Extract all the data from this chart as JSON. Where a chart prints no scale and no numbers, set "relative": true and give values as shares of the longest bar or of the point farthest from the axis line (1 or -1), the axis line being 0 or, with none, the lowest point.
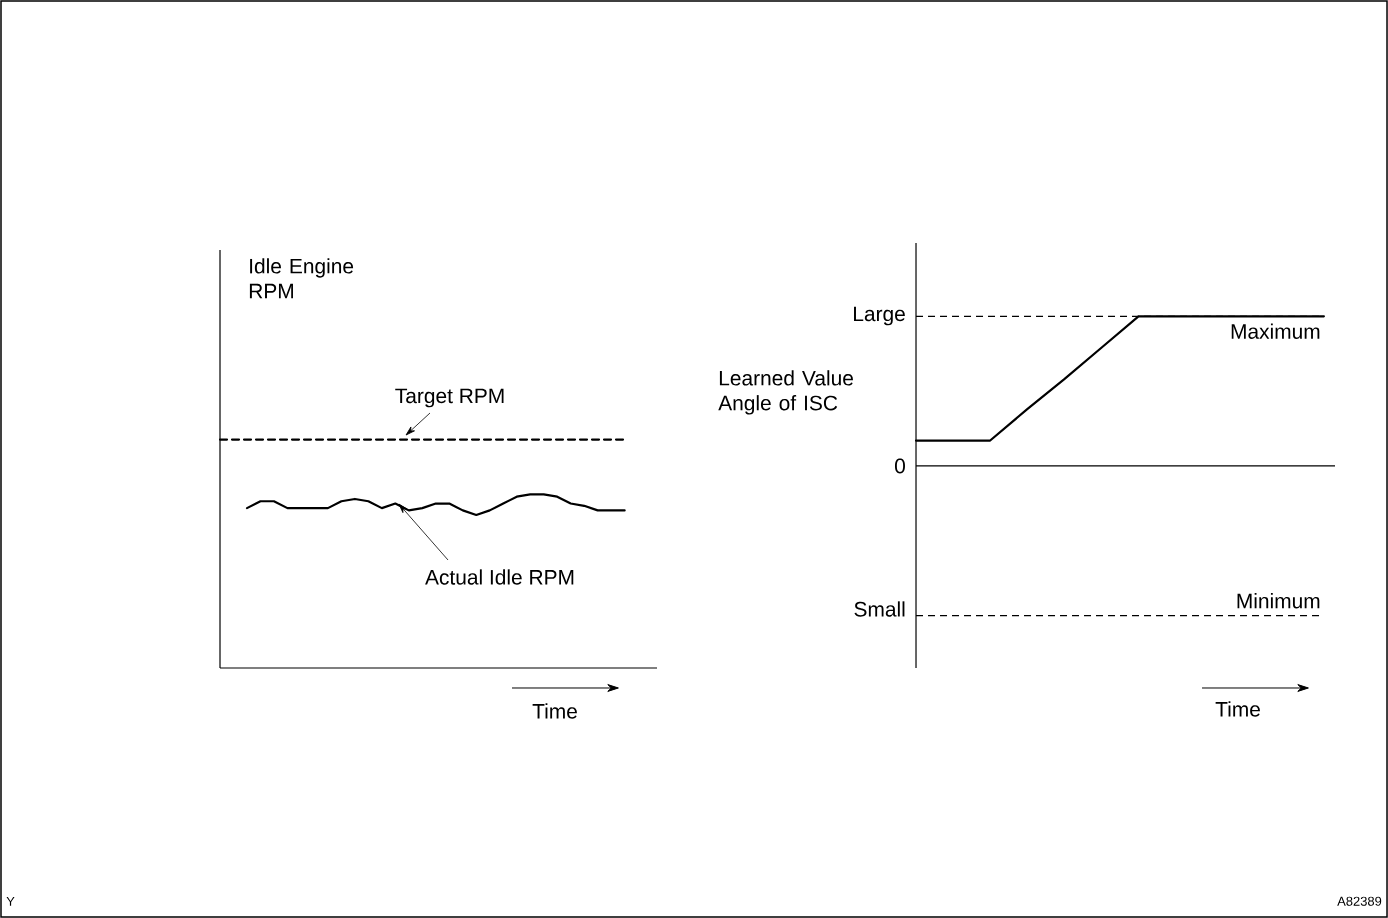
{
  "chart_data": [
    {
      "type": "line",
      "relative": true,
      "ylabel": "Idle Engine RPM",
      "xlabel": "Time",
      "categories": [
        null,
        null,
        null,
        null,
        null,
        null,
        null,
        null,
        null,
        null,
        null,
        null,
        null,
        null,
        null,
        null,
        null,
        null,
        null,
        null,
        null,
        null,
        null,
        null,
        null,
        null,
        null,
        null,
        null,
        null,
        null
      ],
      "series": [
        {
          "name": "Target RPM",
          "color": "#000000",
          "line_style": "dashed",
          "values": [
            1,
            1,
            1,
            1,
            1,
            1,
            1,
            1,
            1,
            1,
            1,
            1,
            1,
            1,
            1,
            1,
            1,
            1,
            1,
            1,
            1,
            1,
            1,
            1,
            1,
            1,
            1,
            1,
            1,
            1,
            1
          ]
        },
        {
          "name": "Actual Idle RPM",
          "color": "#000000",
          "line_style": "solid",
          "values": [
            null,
            null,
            0.7,
            0.73,
            0.73,
            0.7,
            0.7,
            0.7,
            0.7,
            0.73,
            0.74,
            0.73,
            0.7,
            0.72,
            0.69,
            0.7,
            0.72,
            0.72,
            0.69,
            0.67,
            0.69,
            0.72,
            0.75,
            0.76,
            0.76,
            0.75,
            0.72,
            0.71,
            0.69,
            0.69,
            0.69
          ]
        }
      ],
      "annotations": [
        "Y"
      ]
    },
    {
      "type": "line",
      "relative": true,
      "ylabel": "Learned Value Angle of ISC",
      "xlabel": "Time",
      "categories": [
        null,
        null,
        null,
        null,
        null,
        null,
        null,
        null,
        null,
        null,
        null,
        null
      ],
      "series": [
        {
          "color": "#000000",
          "line_style": "solid",
          "values": [
            0.17,
            0.17,
            0.17,
            0.38,
            0.58,
            0.79,
            1,
            1,
            1,
            1,
            1,
            1
          ]
        }
      ],
      "ref_lines": [
        {
          "axis": "y",
          "value": 1,
          "label": "Maximum",
          "line_style": "dashed"
        },
        {
          "axis": "y",
          "value": -1,
          "label": "Minimum",
          "line_style": "dashed"
        }
      ],
      "annotations": [
        "A82389",
        "Large",
        "0",
        "Small"
      ]
    }
  ]
}
